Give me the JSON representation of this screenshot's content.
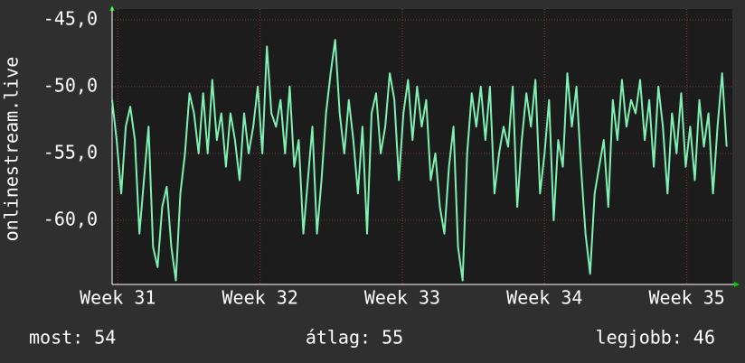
{
  "chart_data": {
    "type": "line",
    "y_label": "onlinestream.live",
    "x": [
      30.96,
      30.992,
      31.024,
      31.056,
      31.088,
      31.12,
      31.152,
      31.184,
      31.216,
      31.248,
      31.28,
      31.312,
      31.344,
      31.376,
      31.408,
      31.44,
      31.472,
      31.504,
      31.536,
      31.568,
      31.6,
      31.632,
      31.664,
      31.696,
      31.728,
      31.76,
      31.792,
      31.824,
      31.856,
      31.888,
      31.92,
      31.952,
      31.984,
      32.016,
      32.048,
      32.08,
      32.112,
      32.144,
      32.176,
      32.208,
      32.24,
      32.272,
      32.304,
      32.336,
      32.368,
      32.4,
      32.432,
      32.464,
      32.496,
      32.528,
      32.56,
      32.592,
      32.624,
      32.656,
      32.688,
      32.72,
      32.752,
      32.784,
      32.816,
      32.848,
      32.88,
      32.912,
      32.944,
      32.976,
      33.008,
      33.04,
      33.072,
      33.104,
      33.136,
      33.168,
      33.2,
      33.232,
      33.264,
      33.296,
      33.328,
      33.36,
      33.392,
      33.424,
      33.456,
      33.488,
      33.52,
      33.552,
      33.584,
      33.616,
      33.648,
      33.68,
      33.712,
      33.744,
      33.776,
      33.808,
      33.84,
      33.872,
      33.904,
      33.936,
      33.968,
      34.0,
      34.032,
      34.064,
      34.096,
      34.128,
      34.16,
      34.192,
      34.224,
      34.256,
      34.288,
      34.32,
      34.352,
      34.384,
      34.416,
      34.448,
      34.48,
      34.512,
      34.544,
      34.576,
      34.608,
      34.64,
      34.672,
      34.704,
      34.736,
      34.768,
      34.8,
      34.832,
      34.864,
      34.896,
      34.928,
      34.96,
      34.992,
      35.024,
      35.056,
      35.088,
      35.12,
      35.152,
      35.184,
      35.216,
      35.248,
      35.28
    ],
    "series": [
      {
        "name": "onlinestream.live",
        "color": "#7ff0b4",
        "values": [
          -51,
          -54,
          -58,
          -53,
          -51.5,
          -54,
          -61,
          -57,
          -53,
          -62,
          -63.5,
          -59,
          -57.5,
          -62,
          -64.5,
          -58,
          -55,
          -50.5,
          -52,
          -55,
          -50.5,
          -55,
          -49.5,
          -54,
          -52,
          -56,
          -52,
          -54,
          -57,
          -52,
          -55,
          -53,
          -50,
          -55,
          -47,
          -52,
          -53,
          -51,
          -55,
          -50,
          -56,
          -54,
          -61,
          -57,
          -53,
          -61,
          -57,
          -52,
          -49,
          -46.5,
          -52,
          -55,
          -51,
          -54,
          -58,
          -53,
          -61,
          -52,
          -50.5,
          -55,
          -53,
          -49,
          -51,
          -57,
          -52,
          -49.5,
          -54,
          -50,
          -53,
          -51,
          -57,
          -55,
          -59,
          -61,
          -56,
          -53,
          -62,
          -64.5,
          -55,
          -50.5,
          -53,
          -50,
          -54,
          -50,
          -58,
          -55,
          -53,
          -54.5,
          -50,
          -59,
          -54,
          -50.5,
          -53,
          -49.5,
          -58,
          -55,
          -51,
          -60,
          -54,
          -56,
          -49,
          -53,
          -50,
          -56,
          -61,
          -64,
          -58,
          -56,
          -54,
          -59,
          -51,
          -54,
          -49.5,
          -53,
          -51,
          -52,
          -49.5,
          -54,
          -51,
          -56,
          -50,
          -53,
          -58,
          -52,
          -55,
          -50.5,
          -56,
          -53,
          -57,
          -51,
          -54.5,
          -52,
          -58,
          -53,
          -49,
          -54.5
        ]
      }
    ],
    "xlim": [
      30.96,
      35.32
    ],
    "xticks": [
      {
        "value": 31,
        "label": "Week 31"
      },
      {
        "value": 32,
        "label": "Week 32"
      },
      {
        "value": 33,
        "label": "Week 33"
      },
      {
        "value": 34,
        "label": "Week 34"
      },
      {
        "value": 35,
        "label": "Week 35"
      }
    ],
    "ylim": [
      -64.8,
      -44.2
    ],
    "yticks": [
      {
        "value": -60,
        "label": "-60,0"
      },
      {
        "value": -55,
        "label": "-55,0"
      },
      {
        "value": -50,
        "label": "-50,0"
      },
      {
        "value": -45,
        "label": "-45,0"
      }
    ],
    "grid": true,
    "footer": [
      "most: 54",
      "átlag: 55",
      "legjobb: 46"
    ]
  }
}
